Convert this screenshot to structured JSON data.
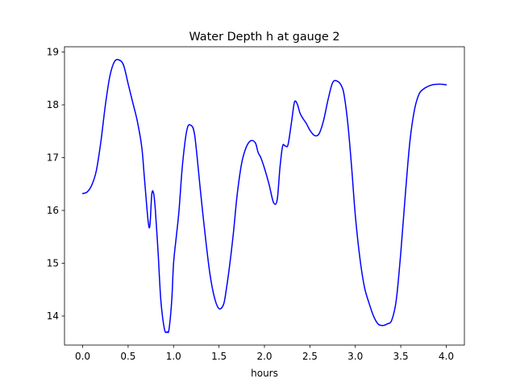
{
  "chart_data": {
    "type": "line",
    "title": "Water Depth h at gauge 2",
    "xlabel": "hours",
    "ylabel": "",
    "xlim": [
      -0.2,
      4.2
    ],
    "ylim": [
      13.45,
      19.1
    ],
    "xticks": [
      0.0,
      0.5,
      1.0,
      1.5,
      2.0,
      2.5,
      3.0,
      3.5,
      4.0
    ],
    "xtick_labels": [
      "0.0",
      "0.5",
      "1.0",
      "1.5",
      "2.0",
      "2.5",
      "3.0",
      "3.5",
      "4.0"
    ],
    "yticks": [
      14,
      15,
      16,
      17,
      18,
      19
    ],
    "ytick_labels": [
      "14",
      "15",
      "16",
      "17",
      "18",
      "19"
    ],
    "grid": false,
    "series": [
      {
        "color": "#0000ff",
        "x": [
          0.0,
          0.05,
          0.1,
          0.15,
          0.2,
          0.25,
          0.3,
          0.35,
          0.4,
          0.45,
          0.5,
          0.55,
          0.6,
          0.65,
          0.68,
          0.72,
          0.74,
          0.76,
          0.78,
          0.8,
          0.83,
          0.86,
          0.9,
          0.93,
          0.95,
          0.98,
          1.0,
          1.03,
          1.06,
          1.1,
          1.15,
          1.2,
          1.23,
          1.26,
          1.3,
          1.35,
          1.4,
          1.45,
          1.5,
          1.55,
          1.58,
          1.62,
          1.66,
          1.7,
          1.75,
          1.8,
          1.85,
          1.9,
          1.93,
          1.96,
          2.0,
          2.05,
          2.1,
          2.14,
          2.17,
          2.2,
          2.23,
          2.26,
          2.3,
          2.33,
          2.36,
          2.39,
          2.42,
          2.46,
          2.5,
          2.55,
          2.6,
          2.65,
          2.7,
          2.75,
          2.8,
          2.85,
          2.88,
          2.92,
          2.96,
          3.0,
          3.05,
          3.1,
          3.15,
          3.2,
          3.25,
          3.3,
          3.35,
          3.4,
          3.45,
          3.5,
          3.55,
          3.6,
          3.65,
          3.7,
          3.75,
          3.8,
          3.85,
          3.9,
          3.95,
          4.0
        ],
        "y": [
          16.32,
          16.35,
          16.48,
          16.75,
          17.3,
          18.0,
          18.55,
          18.82,
          18.85,
          18.75,
          18.4,
          18.05,
          17.7,
          17.2,
          16.6,
          15.8,
          15.72,
          16.3,
          16.33,
          16.0,
          15.2,
          14.3,
          13.75,
          13.7,
          13.75,
          14.3,
          15.0,
          15.5,
          16.0,
          16.9,
          17.55,
          17.6,
          17.45,
          17.0,
          16.3,
          15.5,
          14.8,
          14.35,
          14.14,
          14.22,
          14.5,
          15.0,
          15.6,
          16.3,
          16.9,
          17.2,
          17.32,
          17.28,
          17.1,
          17.0,
          16.8,
          16.5,
          16.15,
          16.2,
          16.8,
          17.22,
          17.22,
          17.25,
          17.7,
          18.05,
          18.02,
          17.85,
          17.75,
          17.65,
          17.52,
          17.42,
          17.45,
          17.7,
          18.1,
          18.42,
          18.45,
          18.35,
          18.15,
          17.6,
          16.8,
          15.9,
          15.1,
          14.55,
          14.25,
          14.0,
          13.85,
          13.82,
          13.85,
          13.92,
          14.3,
          15.2,
          16.3,
          17.3,
          17.9,
          18.2,
          18.3,
          18.35,
          18.38,
          18.39,
          18.39,
          18.38
        ]
      }
    ]
  }
}
